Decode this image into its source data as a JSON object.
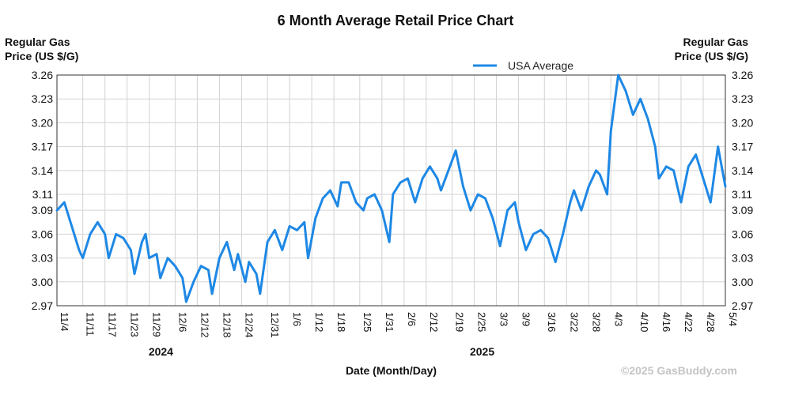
{
  "chart_data": {
    "type": "line",
    "title": "6 Month Average Retail Price Chart",
    "ylabel_left": [
      "Regular Gas",
      "Price (US $/G)"
    ],
    "ylabel_right": [
      "Regular Gas",
      "Price (US $/G)"
    ],
    "xlabel": "Date (Month/Day)",
    "credit": "©2025 GasBuddy.com",
    "ylim": [
      2.97,
      3.26
    ],
    "yticks": [
      "3.26",
      "3.23",
      "3.20",
      "3.17",
      "3.14",
      "3.11",
      "3.09",
      "3.06",
      "3.03",
      "3.00",
      "2.97"
    ],
    "xlim": [
      "2024-11-04",
      "2025-05-04"
    ],
    "xticks": [
      {
        "date": "2024-11-04",
        "label": "11/4"
      },
      {
        "date": "2024-11-11",
        "label": "11/11"
      },
      {
        "date": "2024-11-17",
        "label": "11/17"
      },
      {
        "date": "2024-11-23",
        "label": "11/23"
      },
      {
        "date": "2024-11-29",
        "label": "11/29"
      },
      {
        "date": "2024-12-06",
        "label": "12/6"
      },
      {
        "date": "2024-12-12",
        "label": "12/12"
      },
      {
        "date": "2024-12-18",
        "label": "12/18"
      },
      {
        "date": "2024-12-24",
        "label": "12/24"
      },
      {
        "date": "2024-12-31",
        "label": "12/31"
      },
      {
        "date": "2025-01-06",
        "label": "1/6"
      },
      {
        "date": "2025-01-12",
        "label": "1/12"
      },
      {
        "date": "2025-01-18",
        "label": "1/18"
      },
      {
        "date": "2025-01-25",
        "label": "1/25"
      },
      {
        "date": "2025-01-31",
        "label": "1/31"
      },
      {
        "date": "2025-02-06",
        "label": "2/6"
      },
      {
        "date": "2025-02-12",
        "label": "2/12"
      },
      {
        "date": "2025-02-19",
        "label": "2/19"
      },
      {
        "date": "2025-02-25",
        "label": "2/25"
      },
      {
        "date": "2025-03-03",
        "label": "3/3"
      },
      {
        "date": "2025-03-09",
        "label": "3/9"
      },
      {
        "date": "2025-03-16",
        "label": "3/16"
      },
      {
        "date": "2025-03-22",
        "label": "3/22"
      },
      {
        "date": "2025-03-28",
        "label": "3/28"
      },
      {
        "date": "2025-04-03",
        "label": "4/3"
      },
      {
        "date": "2025-04-10",
        "label": "4/10"
      },
      {
        "date": "2025-04-16",
        "label": "4/16"
      },
      {
        "date": "2025-04-22",
        "label": "4/22"
      },
      {
        "date": "2025-04-28",
        "label": "4/28"
      },
      {
        "date": "2025-05-04",
        "label": "5/4"
      }
    ],
    "year_labels": [
      {
        "date": "2024-12-06",
        "label": "2024"
      },
      {
        "date": "2025-03-03",
        "label": "2025"
      }
    ],
    "grid": true,
    "legend_position": "top-right",
    "series": [
      {
        "name": "USA Average",
        "color": "#1e88e5",
        "x": [
          "2024-11-04",
          "2024-11-06",
          "2024-11-08",
          "2024-11-10",
          "2024-11-11",
          "2024-11-13",
          "2024-11-15",
          "2024-11-17",
          "2024-11-18",
          "2024-11-20",
          "2024-11-22",
          "2024-11-24",
          "2024-11-25",
          "2024-11-27",
          "2024-11-28",
          "2024-11-29",
          "2024-12-01",
          "2024-12-02",
          "2024-12-04",
          "2024-12-06",
          "2024-12-08",
          "2024-12-09",
          "2024-12-11",
          "2024-12-13",
          "2024-12-15",
          "2024-12-16",
          "2024-12-18",
          "2024-12-20",
          "2024-12-22",
          "2024-12-23",
          "2024-12-25",
          "2024-12-26",
          "2024-12-28",
          "2024-12-29",
          "2024-12-31",
          "2025-01-02",
          "2025-01-04",
          "2025-01-06",
          "2025-01-08",
          "2025-01-10",
          "2025-01-11",
          "2025-01-13",
          "2025-01-15",
          "2025-01-17",
          "2025-01-19",
          "2025-01-20",
          "2025-01-22",
          "2025-01-24",
          "2025-01-26",
          "2025-01-27",
          "2025-01-29",
          "2025-01-31",
          "2025-02-02",
          "2025-02-03",
          "2025-02-05",
          "2025-02-07",
          "2025-02-09",
          "2025-02-11",
          "2025-02-13",
          "2025-02-15",
          "2025-02-16",
          "2025-02-18",
          "2025-02-20",
          "2025-02-22",
          "2025-02-24",
          "2025-02-26",
          "2025-02-28",
          "2025-03-02",
          "2025-03-04",
          "2025-03-06",
          "2025-03-08",
          "2025-03-09",
          "2025-03-11",
          "2025-03-13",
          "2025-03-15",
          "2025-03-17",
          "2025-03-19",
          "2025-03-21",
          "2025-03-23",
          "2025-03-24",
          "2025-03-26",
          "2025-03-28",
          "2025-03-30",
          "2025-03-31",
          "2025-04-02",
          "2025-04-03",
          "2025-04-05",
          "2025-04-07",
          "2025-04-09",
          "2025-04-11",
          "2025-04-13",
          "2025-04-15",
          "2025-04-16",
          "2025-04-18",
          "2025-04-20",
          "2025-04-22",
          "2025-04-24",
          "2025-04-26",
          "2025-04-28",
          "2025-04-30",
          "2025-05-02",
          "2025-05-04"
        ],
        "y": [
          3.09,
          3.1,
          3.07,
          3.04,
          3.03,
          3.06,
          3.075,
          3.06,
          3.03,
          3.06,
          3.055,
          3.04,
          3.01,
          3.05,
          3.06,
          3.03,
          3.035,
          3.005,
          3.03,
          3.02,
          3.005,
          2.975,
          3.0,
          3.02,
          3.015,
          2.985,
          3.03,
          3.05,
          3.015,
          3.035,
          3.0,
          3.025,
          3.01,
          2.985,
          3.05,
          3.065,
          3.04,
          3.07,
          3.065,
          3.075,
          3.03,
          3.08,
          3.105,
          3.115,
          3.095,
          3.125,
          3.125,
          3.1,
          3.09,
          3.105,
          3.11,
          3.09,
          3.05,
          3.11,
          3.125,
          3.13,
          3.1,
          3.13,
          3.145,
          3.13,
          3.115,
          3.14,
          3.165,
          3.12,
          3.09,
          3.11,
          3.105,
          3.08,
          3.045,
          3.09,
          3.1,
          3.075,
          3.04,
          3.06,
          3.065,
          3.055,
          3.025,
          3.06,
          3.1,
          3.115,
          3.09,
          3.12,
          3.14,
          3.135,
          3.11,
          3.19,
          3.26,
          3.24,
          3.21,
          3.23,
          3.205,
          3.17,
          3.13,
          3.145,
          3.14,
          3.1,
          3.145,
          3.16,
          3.13,
          3.1,
          3.17,
          3.12
        ]
      }
    ]
  }
}
